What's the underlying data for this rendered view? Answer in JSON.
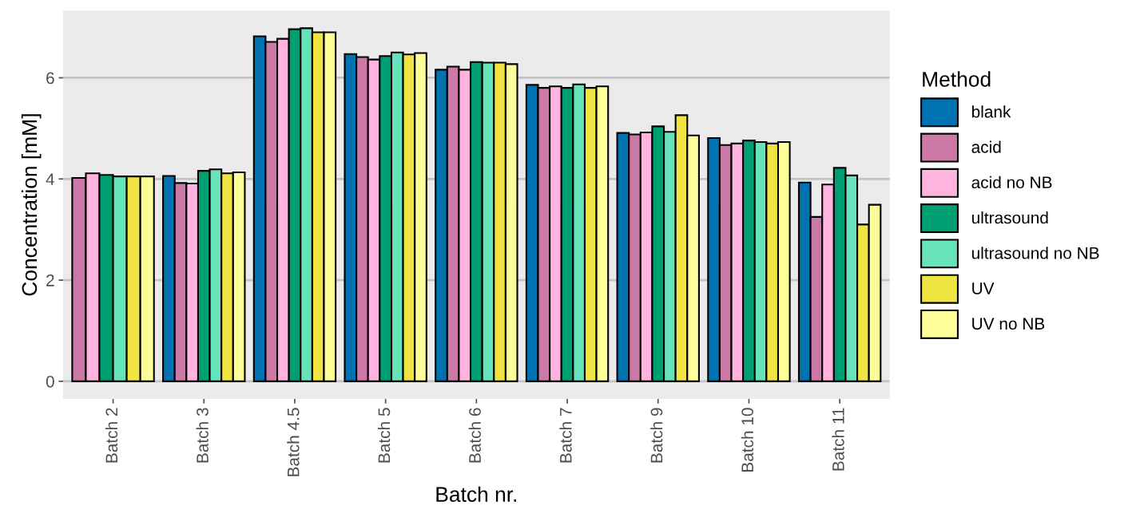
{
  "chart_data": {
    "type": "bar",
    "xlabel": "Batch nr.",
    "ylabel": "Concentration [mM]",
    "legend_title": "Method",
    "legend": "right",
    "grid": "y",
    "categories": [
      "Batch 2",
      "Batch 3",
      "Batch 4.5",
      "Batch 5",
      "Batch 6",
      "Batch 7",
      "Batch 9",
      "Batch 10",
      "Batch 11"
    ],
    "ylim": [
      -0.35,
      7.33
    ],
    "yticks": [
      0,
      2,
      4,
      6
    ],
    "series": [
      {
        "name": "blank",
        "color": "#0072b2",
        "values": [
          null,
          4.06,
          6.82,
          6.47,
          6.16,
          5.86,
          4.91,
          4.81,
          3.93
        ]
      },
      {
        "name": "acid",
        "color": "#cc79a7",
        "values": [
          4.02,
          3.92,
          6.71,
          6.41,
          6.22,
          5.8,
          4.88,
          4.67,
          3.25
        ]
      },
      {
        "name": "acid no NB",
        "color": "#ffb3de",
        "values": [
          4.11,
          3.91,
          6.77,
          6.36,
          6.16,
          5.83,
          4.92,
          4.7,
          3.89
        ]
      },
      {
        "name": "ultrasound",
        "color": "#009e73",
        "values": [
          4.08,
          4.16,
          6.96,
          6.43,
          6.31,
          5.8,
          5.04,
          4.76,
          4.22
        ]
      },
      {
        "name": "ultrasound no NB",
        "color": "#66e3bb",
        "values": [
          4.05,
          4.19,
          6.98,
          6.5,
          6.3,
          5.87,
          4.93,
          4.73,
          4.07
        ]
      },
      {
        "name": "UV",
        "color": "#f0e442",
        "values": [
          4.05,
          4.11,
          6.9,
          6.46,
          6.3,
          5.8,
          5.26,
          4.7,
          3.1
        ]
      },
      {
        "name": "UV no NB",
        "color": "#ffff99",
        "values": [
          4.05,
          4.13,
          6.9,
          6.49,
          6.27,
          5.83,
          4.86,
          4.73,
          3.49
        ]
      }
    ]
  }
}
